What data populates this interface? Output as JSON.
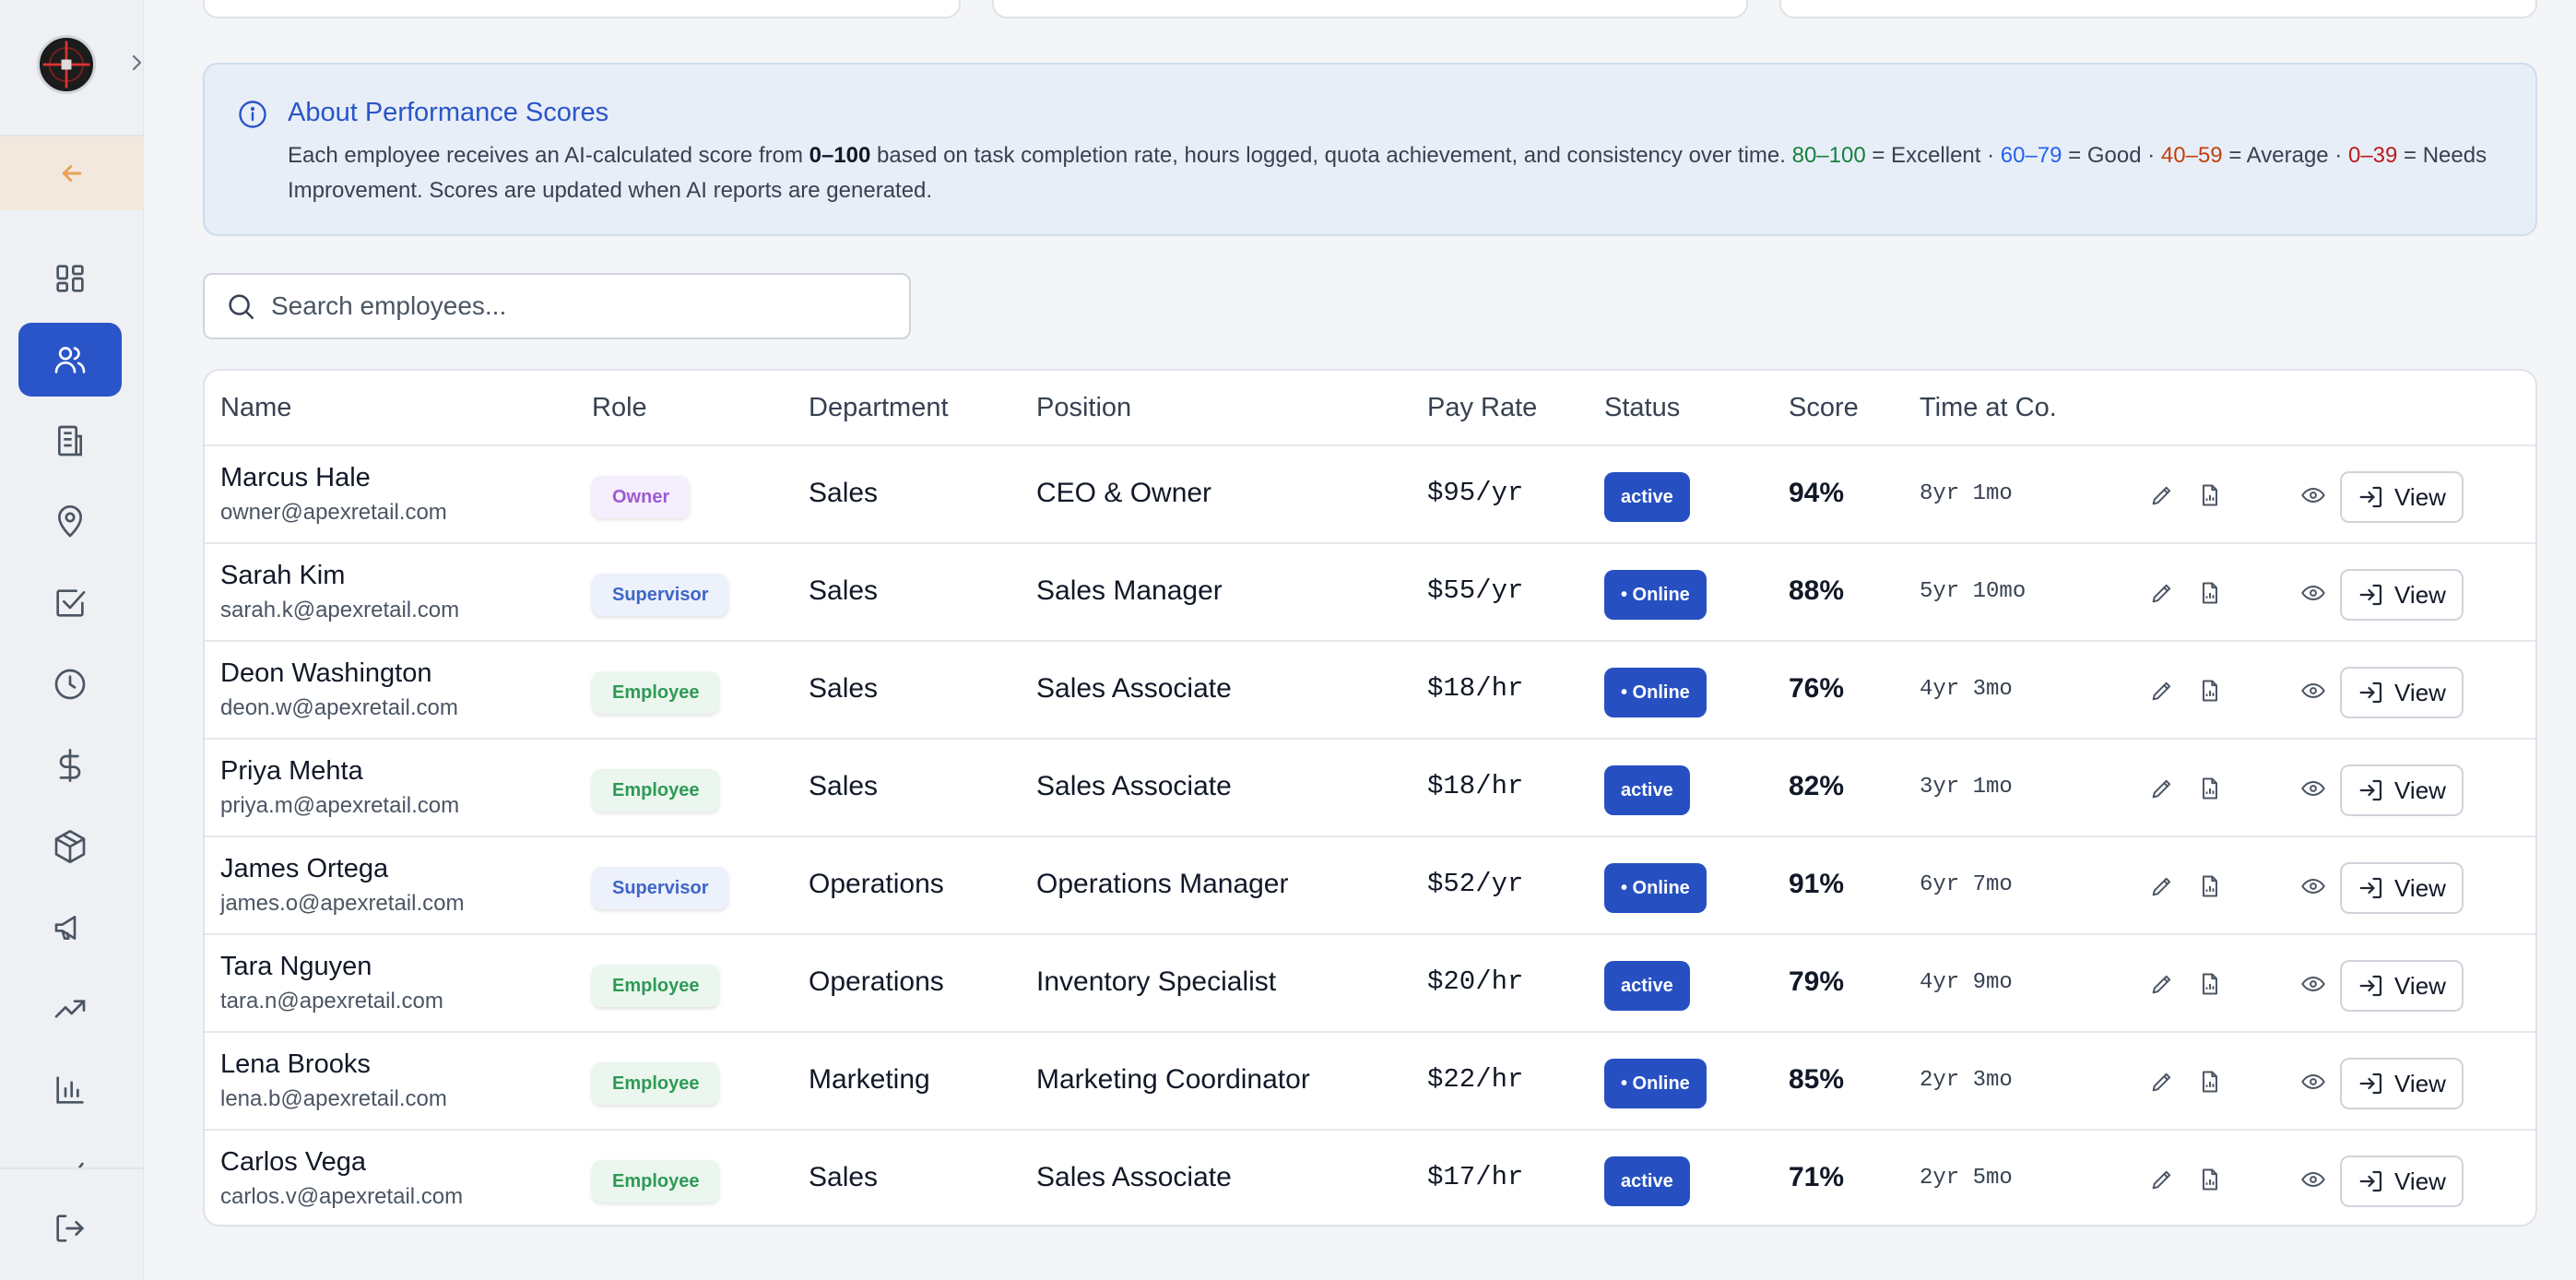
{
  "info": {
    "title": "About Performance Scores",
    "text_1": "Each employee receives an AI-calculated score from ",
    "range_bold": "0–100",
    "text_2": " based on task completion rate, hours logged, quota achievement, and consistency over time. ",
    "r_excellent": "80–100",
    "l_excellent": " = Excellent",
    "sep": " · ",
    "r_good": "60–79",
    "l_good": " = Good",
    "r_average": "40–59",
    "l_average": " = Average",
    "r_needs": "0–39",
    "l_needs": " = Needs Improvement. Scores are updated when AI reports are generated."
  },
  "search": {
    "placeholder": "Search employees..."
  },
  "columns": {
    "name": "Name",
    "role": "Role",
    "department": "Department",
    "position": "Position",
    "pay_rate": "Pay Rate",
    "status": "Status",
    "score": "Score",
    "time_at_co": "Time at Co."
  },
  "view_label": "View",
  "employees": [
    {
      "name": "Marcus Hale",
      "email": "owner@apexretail.com",
      "role": "Owner",
      "role_type": "owner",
      "department": "Sales",
      "position": "CEO & Owner",
      "pay": "$95/yr",
      "status": "active",
      "score": "94%",
      "tenure": "8yr 1mo"
    },
    {
      "name": "Sarah Kim",
      "email": "sarah.k@apexretail.com",
      "role": "Supervisor",
      "role_type": "supervisor",
      "department": "Sales",
      "position": "Sales Manager",
      "pay": "$55/yr",
      "status": "• Online",
      "score": "88%",
      "tenure": "5yr 10mo"
    },
    {
      "name": "Deon Washington",
      "email": "deon.w@apexretail.com",
      "role": "Employee",
      "role_type": "employee",
      "department": "Sales",
      "position": "Sales Associate",
      "pay": "$18/hr",
      "status": "• Online",
      "score": "76%",
      "tenure": "4yr 3mo"
    },
    {
      "name": "Priya Mehta",
      "email": "priya.m@apexretail.com",
      "role": "Employee",
      "role_type": "employee",
      "department": "Sales",
      "position": "Sales Associate",
      "pay": "$18/hr",
      "status": "active",
      "score": "82%",
      "tenure": "3yr 1mo"
    },
    {
      "name": "James Ortega",
      "email": "james.o@apexretail.com",
      "role": "Supervisor",
      "role_type": "supervisor",
      "department": "Operations",
      "position": "Operations Manager",
      "pay": "$52/yr",
      "status": "• Online",
      "score": "91%",
      "tenure": "6yr 7mo"
    },
    {
      "name": "Tara Nguyen",
      "email": "tara.n@apexretail.com",
      "role": "Employee",
      "role_type": "employee",
      "department": "Operations",
      "position": "Inventory Specialist",
      "pay": "$20/hr",
      "status": "active",
      "score": "79%",
      "tenure": "4yr 9mo"
    },
    {
      "name": "Lena Brooks",
      "email": "lena.b@apexretail.com",
      "role": "Employee",
      "role_type": "employee",
      "department": "Marketing",
      "position": "Marketing Coordinator",
      "pay": "$22/hr",
      "status": "• Online",
      "score": "85%",
      "tenure": "2yr 3mo"
    },
    {
      "name": "Carlos Vega",
      "email": "carlos.v@apexretail.com",
      "role": "Employee",
      "role_type": "employee",
      "department": "Sales",
      "position": "Sales Associate",
      "pay": "$17/hr",
      "status": "active",
      "score": "71%",
      "tenure": "2yr 5mo"
    }
  ],
  "icons": {
    "nav": [
      "dashboard-icon",
      "users-icon",
      "building-icon",
      "map-pin-icon",
      "checklist-icon",
      "clock-icon",
      "dollar-icon",
      "package-icon",
      "megaphone-icon",
      "trending-up-icon",
      "bar-chart-icon",
      "partial-nav-icon",
      "logout-icon"
    ]
  },
  "colors": {
    "accent": "#2a55c8",
    "status_badge": "#2650c2"
  }
}
